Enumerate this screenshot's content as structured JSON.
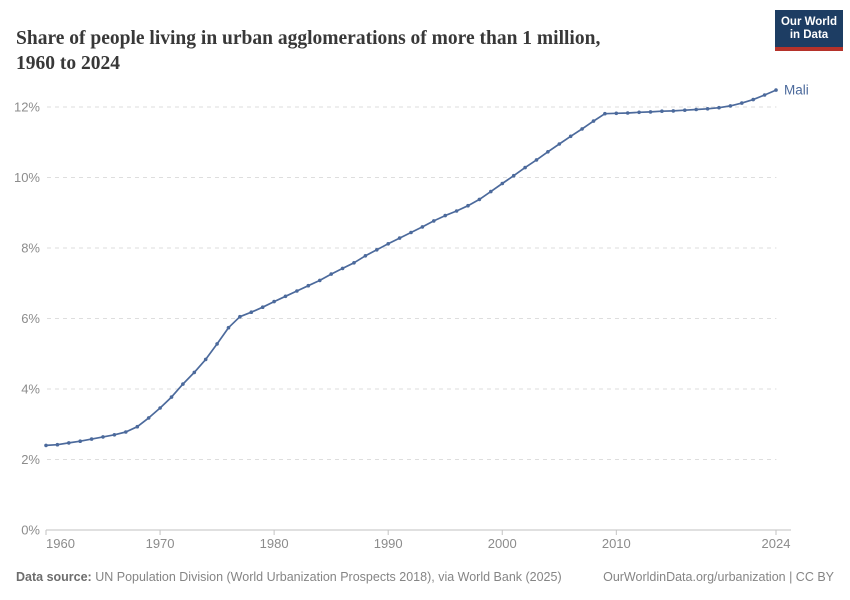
{
  "header": {
    "title_line1": "Share of people living in urban agglomerations of more than 1 million,",
    "title_line2": "1960 to 2024",
    "logo": {
      "line1": "Our World",
      "line2": "in Data"
    }
  },
  "chart_data": {
    "type": "line",
    "title": "Share of people living in urban agglomerations of more than 1 million, 1960 to 2024",
    "xlabel": "",
    "ylabel": "",
    "xlim": [
      1960,
      2024
    ],
    "ylim": [
      0,
      12.6
    ],
    "grid": "horizontal-dashed",
    "legend_position": "end-of-line-label",
    "x_ticks": [
      1960,
      1970,
      1980,
      1990,
      2000,
      2010,
      2024
    ],
    "y_ticks": {
      "values": [
        0,
        2,
        4,
        6,
        8,
        10,
        12
      ],
      "labels": [
        "0%",
        "2%",
        "4%",
        "6%",
        "8%",
        "10%",
        "12%"
      ]
    },
    "series": [
      {
        "name": "Mali",
        "color": "#4c6a9c",
        "years": [
          1960,
          1961,
          1962,
          1963,
          1964,
          1965,
          1966,
          1967,
          1968,
          1969,
          1970,
          1971,
          1972,
          1973,
          1974,
          1975,
          1976,
          1977,
          1978,
          1979,
          1980,
          1981,
          1982,
          1983,
          1984,
          1985,
          1986,
          1987,
          1988,
          1989,
          1990,
          1991,
          1992,
          1993,
          1994,
          1995,
          1996,
          1997,
          1998,
          1999,
          2000,
          2001,
          2002,
          2003,
          2004,
          2005,
          2006,
          2007,
          2008,
          2009,
          2010,
          2011,
          2012,
          2013,
          2014,
          2015,
          2016,
          2017,
          2018,
          2019,
          2020,
          2021,
          2022,
          2023,
          2024
        ],
        "values": [
          2.4,
          2.42,
          2.47,
          2.52,
          2.58,
          2.64,
          2.7,
          2.78,
          2.93,
          3.18,
          3.46,
          3.77,
          4.14,
          4.47,
          4.84,
          5.28,
          5.74,
          6.05,
          6.18,
          6.32,
          6.48,
          6.63,
          6.78,
          6.93,
          7.08,
          7.26,
          7.42,
          7.58,
          7.78,
          7.95,
          8.12,
          8.28,
          8.44,
          8.6,
          8.77,
          8.92,
          9.05,
          9.2,
          9.38,
          9.6,
          9.83,
          10.05,
          10.28,
          10.5,
          10.73,
          10.95,
          11.17,
          11.38,
          11.6,
          11.81,
          11.82,
          11.83,
          11.85,
          11.86,
          11.88,
          11.89,
          11.91,
          11.93,
          11.95,
          11.98,
          12.03,
          12.11,
          12.21,
          12.34,
          12.48
        ]
      }
    ],
    "colors": {
      "line": "#4c6a9c",
      "gridline": "#dedede",
      "axis": "#c2c2c2",
      "axis_text": "#8c8c8c"
    }
  },
  "footer": {
    "source_label": "Data source:",
    "source_text": " UN Population Division (World Urbanization Prospects 2018), via World Bank (2025)",
    "link_text": "OurWorldinData.org/urbanization | CC BY"
  }
}
